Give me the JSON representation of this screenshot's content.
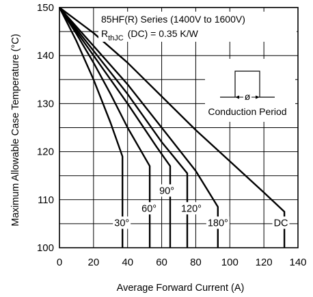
{
  "chart_data": {
    "type": "line",
    "xlabel": "Average Forward Current (A)",
    "ylabel": "Maximum Allowable Case Temperature (°C)",
    "xlim": [
      0,
      140
    ],
    "ylim": [
      100,
      150
    ],
    "x_ticks": [
      0,
      20,
      40,
      60,
      80,
      100,
      120,
      140
    ],
    "y_ticks": [
      100,
      110,
      120,
      130,
      140,
      150
    ],
    "grid": true,
    "annotations": {
      "series_line": "85HF(R) Series (1400V to 1600V)",
      "rth_symbol": "R",
      "rth_subscript": "thJC",
      "rth_value": "(DC) = 0.35 K/W",
      "phi_symbol": "ø",
      "conduction_label": "Conduction Period"
    },
    "series": [
      {
        "name": "30°",
        "x": [
          0,
          10,
          20,
          30,
          37,
          37
        ],
        "y": [
          150,
          143,
          135,
          126,
          119,
          100
        ]
      },
      {
        "name": "60°",
        "x": [
          0,
          10,
          20,
          30,
          40,
          53,
          53
        ],
        "y": [
          150,
          144.5,
          138.5,
          132,
          125,
          117,
          100
        ]
      },
      {
        "name": "90°",
        "x": [
          0,
          20,
          40,
          57,
          65,
          65
        ],
        "y": [
          150,
          140,
          130,
          121,
          117,
          100
        ]
      },
      {
        "name": "120°",
        "x": [
          0,
          20,
          40,
          60,
          75,
          75
        ],
        "y": [
          150,
          141,
          132,
          122,
          115.5,
          100
        ]
      },
      {
        "name": "180°",
        "x": [
          0,
          20,
          40,
          60,
          80,
          93,
          93
        ],
        "y": [
          150,
          142,
          134,
          125,
          116,
          108.5,
          100
        ]
      },
      {
        "name": "DC",
        "x": [
          0,
          20,
          40,
          60,
          80,
          100,
          120,
          132,
          132
        ],
        "y": [
          150,
          144.7,
          138.5,
          131.5,
          124.5,
          118,
          111.5,
          107.5,
          100
        ]
      }
    ]
  }
}
